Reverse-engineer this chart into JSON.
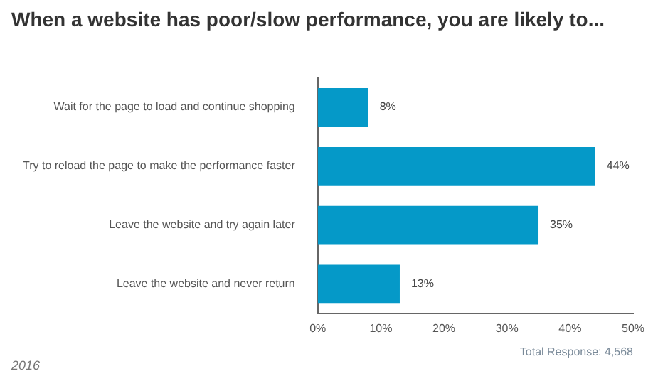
{
  "chart_data": {
    "type": "bar",
    "orientation": "horizontal",
    "title": "When a website has poor/slow performance, you are likely to...",
    "categories": [
      "Wait for the page to load and continue shopping",
      "Try to reload the page to make the performance faster",
      "Leave the website and try again later",
      "Leave the website and never return"
    ],
    "values": [
      8,
      44,
      35,
      13
    ],
    "color": "#0599c8",
    "value_labels": [
      "8%",
      "44%",
      "35%",
      "13%"
    ],
    "xlim": [
      0,
      50
    ],
    "xticks": [
      {
        "value": 0,
        "label": "0%"
      },
      {
        "value": 10,
        "label": "10%"
      },
      {
        "value": 20,
        "label": "20%"
      },
      {
        "value": 30,
        "label": "30%"
      },
      {
        "value": 40,
        "label": "40%"
      },
      {
        "value": 50,
        "label": "50%"
      }
    ],
    "grid": false,
    "legend": false,
    "annotations": [
      "2016",
      "Total Response: 4,568"
    ]
  }
}
